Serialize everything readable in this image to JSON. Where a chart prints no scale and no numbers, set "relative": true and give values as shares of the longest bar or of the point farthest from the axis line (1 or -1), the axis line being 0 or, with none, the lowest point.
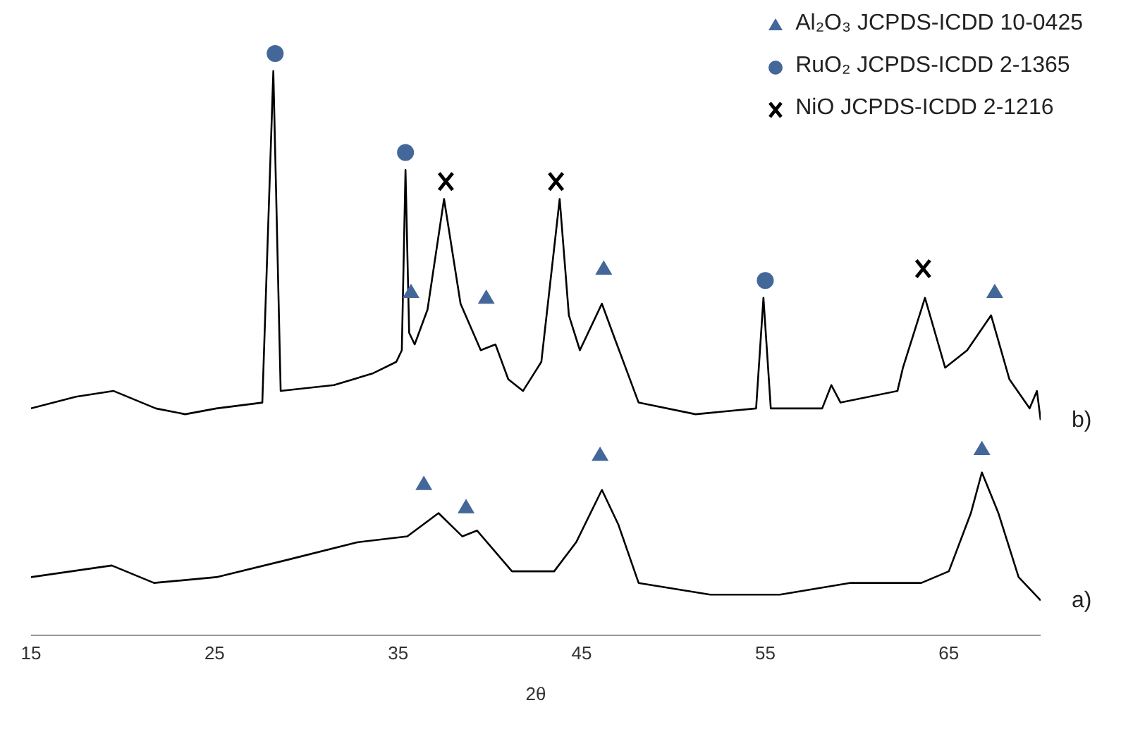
{
  "chart_data": {
    "type": "line",
    "relative": true,
    "xlabel": "2θ",
    "xlim": [
      15,
      70
    ],
    "xticks": [
      15,
      25,
      35,
      45,
      55,
      65
    ],
    "grid": false,
    "legend": "top right",
    "line_style": "solid",
    "series": [
      {
        "name": "b)",
        "color": "#000000",
        "marker": "none",
        "x": [
          15.0,
          17.45,
          19.5,
          21.8,
          23.4,
          25.1,
          27.6,
          28.2,
          28.6,
          31.5,
          33.6,
          34.9,
          35.2,
          35.4,
          35.6,
          35.9,
          36.6,
          37.5,
          38.4,
          39.5,
          40.3,
          41.0,
          41.8,
          42.8,
          43.8,
          44.3,
          44.9,
          46.1,
          46.8,
          48.1,
          51.2,
          54.5,
          54.9,
          55.3,
          58.1,
          58.6,
          59.1,
          62.2,
          62.5,
          63.7,
          64.8,
          66.0,
          67.3,
          68.3,
          69.4,
          69.8,
          70.0
        ],
        "values": [
          0.39,
          0.41,
          0.42,
          0.39,
          0.38,
          0.39,
          0.4,
          0.97,
          0.42,
          0.43,
          0.45,
          0.47,
          0.49,
          0.8,
          0.52,
          0.5,
          0.56,
          0.75,
          0.57,
          0.49,
          0.5,
          0.44,
          0.42,
          0.47,
          0.75,
          0.55,
          0.49,
          0.57,
          0.51,
          0.4,
          0.38,
          0.39,
          0.58,
          0.39,
          0.39,
          0.43,
          0.4,
          0.42,
          0.46,
          0.58,
          0.46,
          0.49,
          0.55,
          0.44,
          0.39,
          0.42,
          0.37
        ]
      },
      {
        "name": "a)",
        "color": "#000000",
        "marker": "none",
        "x": [
          15.0,
          19.4,
          21.7,
          25.1,
          29.0,
          32.8,
          35.5,
          37.2,
          38.5,
          39.3,
          41.2,
          43.5,
          44.7,
          46.1,
          47.0,
          48.1,
          52.0,
          55.8,
          59.6,
          63.5,
          65.0,
          66.2,
          66.8,
          67.7,
          68.8,
          70.0
        ],
        "values": [
          0.1,
          0.12,
          0.09,
          0.1,
          0.13,
          0.16,
          0.17,
          0.21,
          0.17,
          0.18,
          0.11,
          0.11,
          0.16,
          0.25,
          0.19,
          0.09,
          0.07,
          0.07,
          0.09,
          0.09,
          0.11,
          0.21,
          0.28,
          0.21,
          0.1,
          0.06
        ]
      },
      {
        "name": "Al₂O₃ JCPDS-ICDD 10-0425",
        "type": "scatter",
        "color": "#44679a",
        "marker": "triangle",
        "x": [
          35.7,
          39.8,
          46.2,
          67.5,
          36.4,
          38.7,
          46.0,
          66.8
        ],
        "values": [
          0.59,
          0.58,
          0.63,
          0.59,
          0.26,
          0.22,
          0.31,
          0.32
        ]
      },
      {
        "name": "RuO₂ JCPDS-ICDD 2-1365",
        "type": "scatter",
        "color": "#44679a",
        "marker": "circle",
        "x": [
          28.3,
          35.4,
          55.0
        ],
        "values": [
          1.0,
          0.83,
          0.61
        ]
      },
      {
        "name": "NiO  JCPDS-ICDD 2-1216",
        "type": "scatter",
        "color": "#000000",
        "marker": "cross",
        "x": [
          37.6,
          43.6,
          63.6
        ],
        "values": [
          0.78,
          0.78,
          0.63
        ]
      }
    ]
  }
}
